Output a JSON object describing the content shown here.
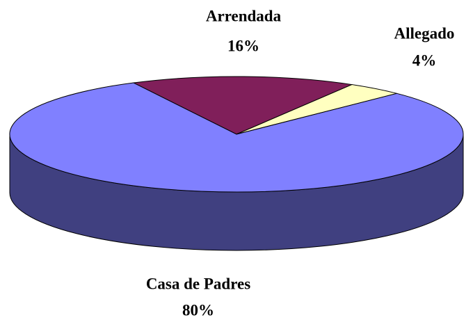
{
  "chart_data": {
    "type": "pie",
    "categories": [
      "Arrendada",
      "Allegado",
      "Casa de Padres"
    ],
    "values": [
      16,
      4,
      80
    ],
    "value_labels": [
      "16%",
      "4%",
      "80%"
    ],
    "colors": [
      "#801f5a",
      "#ffffc0",
      "#8080ff"
    ]
  }
}
